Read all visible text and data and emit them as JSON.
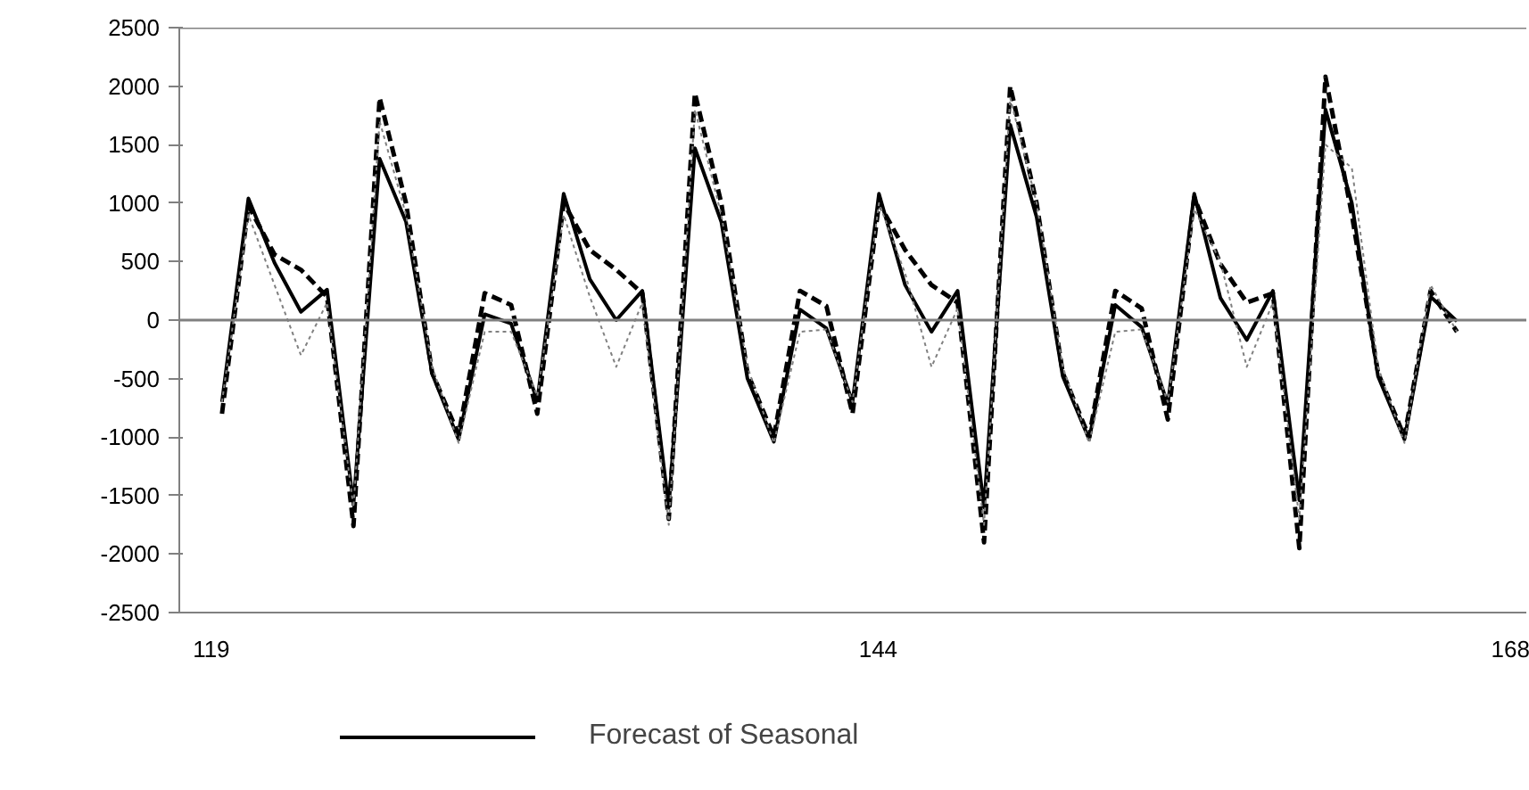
{
  "chart_data": {
    "type": "line",
    "x": [
      119.4,
      120.39,
      121.37,
      122.36,
      123.34,
      124.33,
      125.31,
      126.3,
      127.28,
      128.27,
      129.25,
      130.24,
      131.22,
      132.21,
      133.19,
      134.18,
      135.16,
      136.15,
      137.13,
      138.12,
      139.1,
      140.09,
      141.07,
      142.06,
      143.04,
      144.03,
      145.01,
      146,
      146.98,
      147.97,
      148.95,
      149.94,
      150.92,
      151.91,
      152.89,
      153.88,
      154.86,
      155.85,
      156.83,
      157.82,
      158.8,
      159.79,
      160.77,
      161.76,
      162.74,
      163.73,
      164.71,
      165.7
    ],
    "series": [
      {
        "name": "Forecast of Seasonal",
        "color": "#000000",
        "line_style": "solid",
        "values": [
          -700,
          1040,
          490,
          70,
          260,
          -1580,
          1380,
          840,
          -460,
          -1020,
          50,
          -30,
          -690,
          1080,
          350,
          0,
          250,
          -1600,
          1470,
          840,
          -500,
          -1040,
          90,
          -70,
          -700,
          1080,
          300,
          -100,
          250,
          -1600,
          1670,
          880,
          -480,
          -1020,
          130,
          -60,
          -720,
          1080,
          190,
          -170,
          250,
          -1540,
          1800,
          1000,
          -480,
          -1020,
          200,
          -10
        ]
      },
      {
        "color": "#000000",
        "line_style": "dashed",
        "values": [
          -800,
          980,
          560,
          430,
          200,
          -1760,
          1900,
          1000,
          -450,
          -980,
          230,
          130,
          -800,
          1000,
          600,
          430,
          230,
          -1700,
          1940,
          1000,
          -450,
          -1000,
          250,
          120,
          -800,
          1000,
          600,
          300,
          150,
          -1900,
          2000,
          1000,
          -450,
          -1000,
          250,
          100,
          -850,
          1050,
          480,
          150,
          230,
          -1950,
          2080,
          900,
          -450,
          -1000,
          250,
          -100
        ]
      },
      {
        "color": "#808080",
        "line_style": "dotted",
        "values": [
          -700,
          900,
          300,
          -300,
          150,
          -1600,
          1700,
          900,
          -400,
          -1050,
          -100,
          -100,
          -650,
          900,
          200,
          -400,
          150,
          -1750,
          1800,
          900,
          -400,
          -1050,
          -100,
          -80,
          -700,
          1000,
          400,
          -400,
          100,
          -1750,
          1900,
          1000,
          -400,
          -1050,
          -100,
          -80,
          -700,
          950,
          500,
          -400,
          150,
          -1700,
          1500,
          1300,
          -400,
          -1050,
          300,
          -100
        ]
      }
    ],
    "xlim": [
      117.8,
      168.3
    ],
    "xticks": [
      119,
      144,
      168
    ],
    "ylim": [
      -2500,
      2500
    ],
    "yticks": [
      -2500,
      -2000,
      -1500,
      -1000,
      -500,
      0,
      500,
      1000,
      1500,
      2000,
      2500
    ],
    "ref_lines": [
      {
        "axis": "y",
        "value": 0,
        "color": "#808080"
      }
    ],
    "grid": false,
    "legend": "bottom left",
    "marker": "none"
  }
}
